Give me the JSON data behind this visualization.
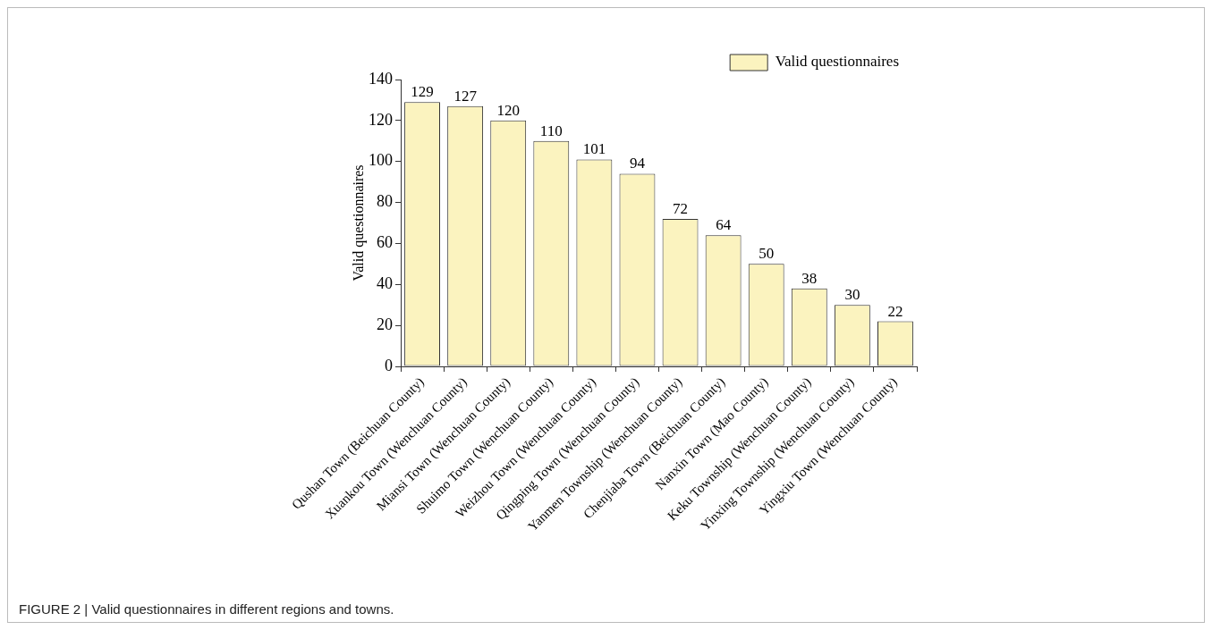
{
  "chart_data": {
    "type": "bar",
    "ylabel": "Valid questionnaires",
    "categories": [
      "Qushan Town (Beichuan County)",
      "Xuankou Town (Wenchuan County)",
      "Miansi Town (Wenchuan County)",
      "Shuimo Town (Wenchuan County)",
      "Weizhou Town (Wenchuan County)",
      "Qingping Town (Wenchuan County)",
      "Yanmen Township (Wenchuan County)",
      "Chenjiaba Town (Beichuan County)",
      "Nanxin Town (Mao County)",
      "Keku Township (Wenchuan County)",
      "Yinxing Township (Wenchuan County)",
      "Yingxiu Town (Wenchuan County)"
    ],
    "series": [
      {
        "name": "Valid questionnaires",
        "color": "#fbf3bf",
        "values": [
          129,
          127,
          120,
          110,
          101,
          94,
          72,
          64,
          50,
          38,
          30,
          22
        ]
      }
    ],
    "ylim": [
      0,
      140
    ],
    "yticks": [
      0,
      20,
      40,
      60,
      80,
      100,
      120,
      140
    ],
    "grid": false,
    "legend": "top right",
    "data_labels": true,
    "annotations": [
      "FIGURE 2 | Valid questionnaires in different regions and towns."
    ]
  }
}
